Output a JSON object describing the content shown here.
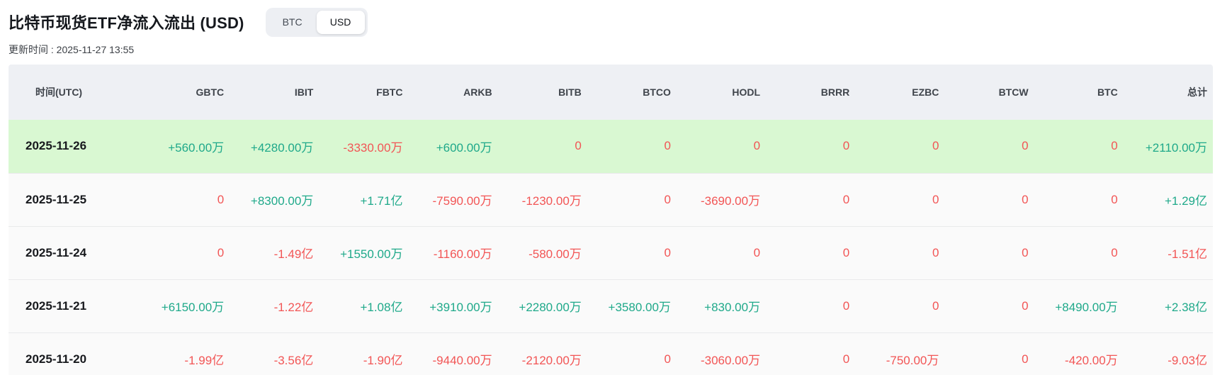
{
  "page": {
    "title": "比特币现货ETF净流入流出 (USD)",
    "updated": "更新时间 : 2025-11-27 13:55"
  },
  "toggle": {
    "options": [
      {
        "label": "BTC",
        "active": false
      },
      {
        "label": "USD",
        "active": true
      }
    ]
  },
  "colors": {
    "positive": "#1fa98a",
    "negative": "#f25555",
    "highlight_row_bg": "#d9f8d2",
    "header_bg": "#eef0f4"
  },
  "table": {
    "columns": [
      "时间(UTC)",
      "GBTC",
      "IBIT",
      "FBTC",
      "ARKB",
      "BITB",
      "BTCO",
      "HODL",
      "BRRR",
      "EZBC",
      "BTCW",
      "BTC",
      "总计"
    ],
    "rows": [
      {
        "date": "2025-11-26",
        "highlight": true,
        "values": [
          "+560.00万",
          "+4280.00万",
          "-3330.00万",
          "+600.00万",
          "0",
          "0",
          "0",
          "0",
          "0",
          "0",
          "0",
          "+2110.00万"
        ]
      },
      {
        "date": "2025-11-25",
        "highlight": false,
        "values": [
          "0",
          "+8300.00万",
          "+1.71亿",
          "-7590.00万",
          "-1230.00万",
          "0",
          "-3690.00万",
          "0",
          "0",
          "0",
          "0",
          "+1.29亿"
        ]
      },
      {
        "date": "2025-11-24",
        "highlight": false,
        "values": [
          "0",
          "-1.49亿",
          "+1550.00万",
          "-1160.00万",
          "-580.00万",
          "0",
          "0",
          "0",
          "0",
          "0",
          "0",
          "-1.51亿"
        ]
      },
      {
        "date": "2025-11-21",
        "highlight": false,
        "values": [
          "+6150.00万",
          "-1.22亿",
          "+1.08亿",
          "+3910.00万",
          "+2280.00万",
          "+3580.00万",
          "+830.00万",
          "0",
          "0",
          "0",
          "+8490.00万",
          "+2.38亿"
        ]
      },
      {
        "date": "2025-11-20",
        "highlight": false,
        "values": [
          "-1.99亿",
          "-3.56亿",
          "-1.90亿",
          "-9440.00万",
          "-2120.00万",
          "0",
          "-3060.00万",
          "0",
          "-750.00万",
          "0",
          "-420.00万",
          "-9.03亿"
        ]
      }
    ]
  }
}
